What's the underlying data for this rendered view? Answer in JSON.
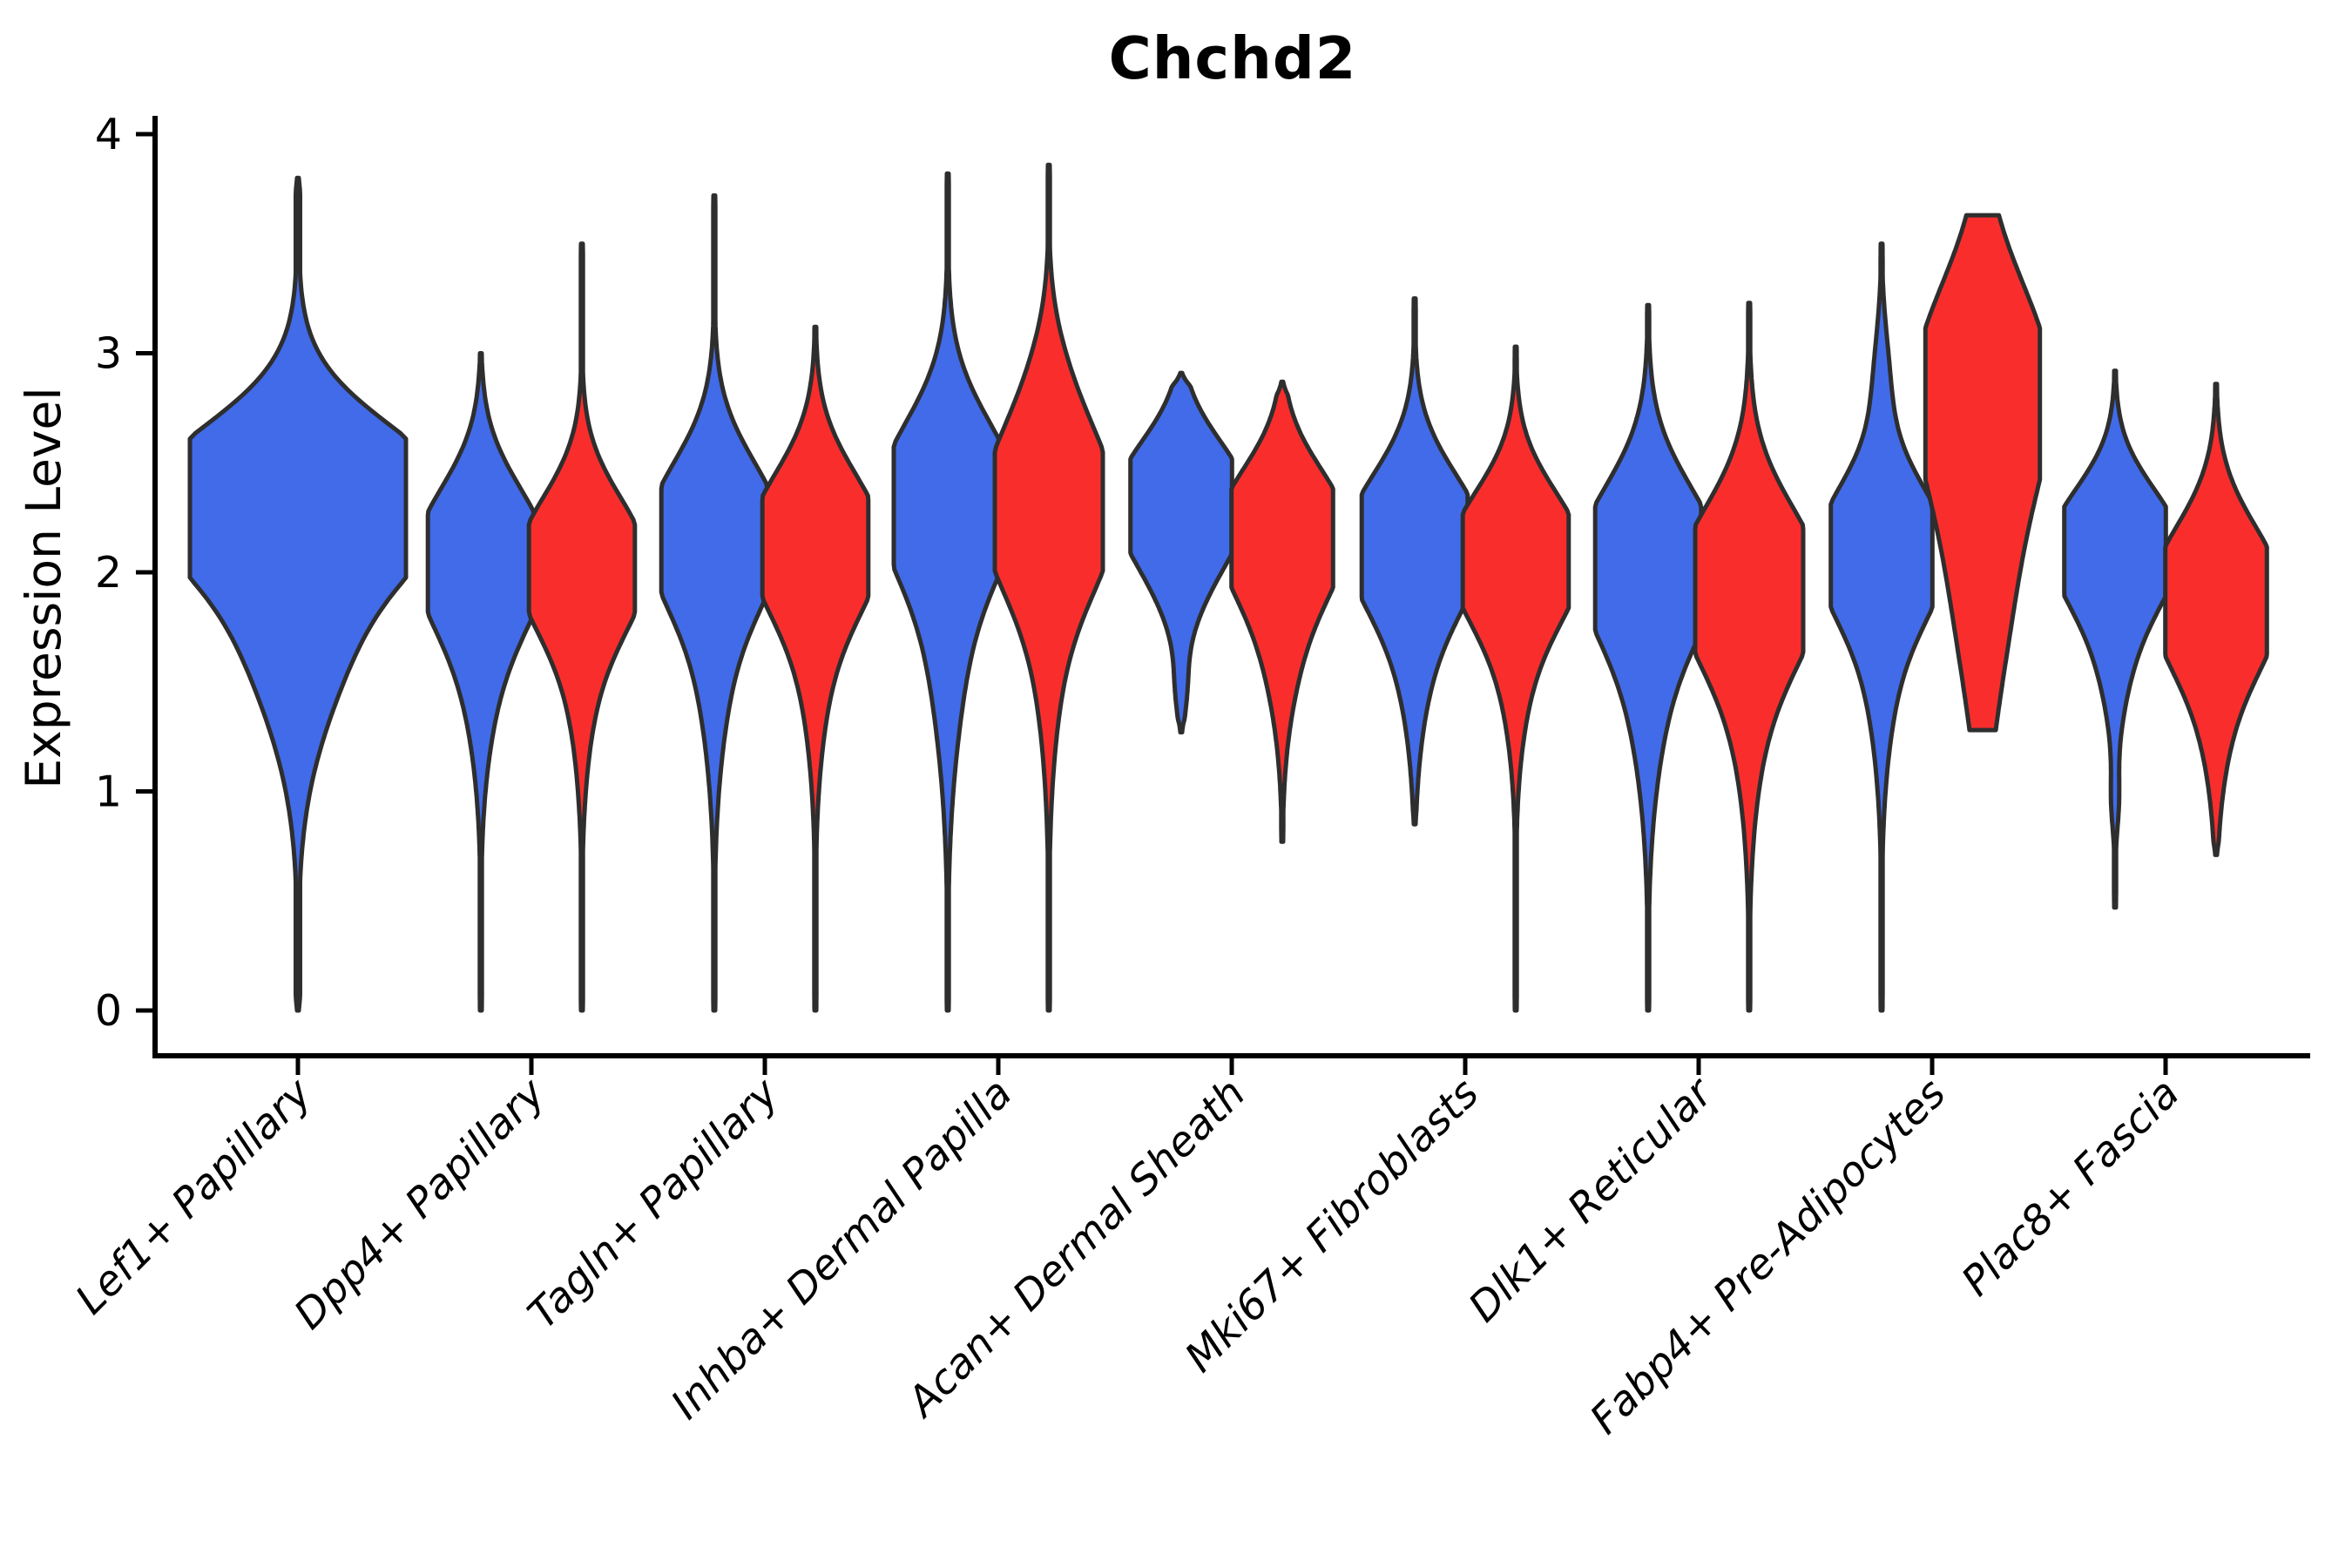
{
  "title": "Chchd2",
  "y_axis": {
    "label": "Expression Level",
    "tick_labels": [
      "0",
      "1",
      "2",
      "3",
      "4"
    ],
    "tick_values": [
      0,
      1,
      2,
      3,
      4
    ],
    "range": [
      0,
      4.1
    ]
  },
  "categories": [
    "Lef1+ Papillary",
    "Dpp4+ Papillary",
    "Tagln+ Papillary",
    "Inhba+ Dermal Papilla",
    "Acan+ Dermal Sheath",
    "Mki67+ Fibroblasts",
    "Dlk1+ Reticular",
    "Fabp4+ Pre-Adipocytes",
    "Plac8+ Fascia"
  ],
  "colors": {
    "blue_fill": "#416BE8",
    "red_fill": "#FA2D2D",
    "outline": "#2E2E2E",
    "axis": "#000000"
  },
  "chart_data": {
    "type": "violin",
    "title": "Chchd2",
    "xlabel": "",
    "ylabel": "Expression Level",
    "ylim": [
      0,
      4.1
    ],
    "grid": false,
    "legend": "none",
    "groups": [
      {
        "name": "group-blue",
        "color": "#416BE8"
      },
      {
        "name": "group-red",
        "color": "#FA2D2D"
      }
    ],
    "violins": [
      {
        "category": 0,
        "group": "single",
        "color": "blue",
        "min": 0.0,
        "max": 3.8,
        "peak": 2.3,
        "width_rel": 1.0,
        "blunt": [
          false,
          false
        ],
        "components": [
          [
            2.38,
            0.3,
            1.0
          ],
          [
            1.95,
            0.52,
            0.6
          ]
        ]
      },
      {
        "category": 1,
        "group": "blue",
        "color": "blue",
        "min": 0.0,
        "max": 3.0,
        "peak": 2.08,
        "width_rel": 0.49,
        "blunt": [
          false,
          false
        ],
        "components": [
          [
            2.1,
            0.3,
            1.0
          ],
          [
            1.72,
            0.42,
            0.38
          ]
        ]
      },
      {
        "category": 1,
        "group": "red",
        "color": "red",
        "min": 0.0,
        "max": 3.5,
        "peak": 2.05,
        "width_rel": 0.49,
        "blunt": [
          false,
          false
        ],
        "components": [
          [
            2.06,
            0.29,
            1.0
          ],
          [
            1.72,
            0.42,
            0.32
          ]
        ]
      },
      {
        "category": 2,
        "group": "blue",
        "color": "blue",
        "min": 0.0,
        "max": 3.72,
        "peak": 2.18,
        "width_rel": 0.49,
        "blunt": [
          false,
          false
        ],
        "components": [
          [
            2.2,
            0.31,
            1.0
          ],
          [
            1.82,
            0.48,
            0.38
          ]
        ]
      },
      {
        "category": 2,
        "group": "red",
        "color": "red",
        "min": 0.0,
        "max": 3.12,
        "peak": 2.15,
        "width_rel": 0.49,
        "blunt": [
          false,
          false
        ],
        "components": [
          [
            2.16,
            0.3,
            1.0
          ],
          [
            1.82,
            0.45,
            0.35
          ]
        ]
      },
      {
        "category": 3,
        "group": "blue",
        "color": "blue",
        "min": 0.0,
        "max": 3.82,
        "peak": 2.33,
        "width_rel": 0.5,
        "blunt": [
          false,
          false
        ],
        "components": [
          [
            2.36,
            0.33,
            1.0
          ],
          [
            1.92,
            0.55,
            0.42
          ]
        ]
      },
      {
        "category": 3,
        "group": "red",
        "color": "red",
        "min": 0.0,
        "max": 3.86,
        "peak": 2.3,
        "width_rel": 0.5,
        "blunt": [
          false,
          false
        ],
        "components": [
          [
            2.3,
            0.34,
            1.0
          ],
          [
            2.85,
            0.28,
            0.2
          ],
          [
            1.9,
            0.5,
            0.32
          ]
        ]
      },
      {
        "category": 4,
        "group": "blue",
        "color": "blue",
        "min": 1.27,
        "max": 2.91,
        "peak": 2.36,
        "width_rel": 0.47,
        "blunt": [
          false,
          false
        ],
        "components": [
          [
            2.38,
            0.25,
            1.0
          ],
          [
            2.08,
            0.28,
            0.5
          ],
          [
            1.45,
            0.13,
            0.08
          ]
        ]
      },
      {
        "category": 4,
        "group": "red",
        "color": "red",
        "min": 0.77,
        "max": 2.87,
        "peak": 2.2,
        "width_rel": 0.47,
        "blunt": [
          false,
          false
        ],
        "components": [
          [
            2.22,
            0.27,
            1.0
          ],
          [
            1.85,
            0.38,
            0.45
          ]
        ]
      },
      {
        "category": 5,
        "group": "blue",
        "color": "blue",
        "min": 0.85,
        "max": 3.25,
        "peak": 2.16,
        "width_rel": 0.49,
        "blunt": [
          false,
          false
        ],
        "components": [
          [
            2.17,
            0.29,
            1.0
          ],
          [
            1.85,
            0.42,
            0.4
          ]
        ]
      },
      {
        "category": 5,
        "group": "red",
        "color": "red",
        "min": 0.0,
        "max": 3.03,
        "peak": 2.1,
        "width_rel": 0.49,
        "blunt": [
          false,
          false
        ],
        "components": [
          [
            2.1,
            0.28,
            1.0
          ],
          [
            1.78,
            0.4,
            0.36
          ]
        ]
      },
      {
        "category": 6,
        "group": "blue",
        "color": "blue",
        "min": 0.0,
        "max": 3.22,
        "peak": 2.06,
        "width_rel": 0.49,
        "blunt": [
          false,
          false
        ],
        "components": [
          [
            2.08,
            0.32,
            1.0
          ],
          [
            1.72,
            0.5,
            0.45
          ]
        ]
      },
      {
        "category": 6,
        "group": "red",
        "color": "red",
        "min": 0.0,
        "max": 3.23,
        "peak": 1.97,
        "width_rel": 0.5,
        "blunt": [
          false,
          false
        ],
        "components": [
          [
            1.97,
            0.33,
            1.0
          ],
          [
            1.68,
            0.5,
            0.42
          ]
        ]
      },
      {
        "category": 7,
        "group": "blue",
        "color": "blue",
        "min": 0.0,
        "max": 3.5,
        "peak": 2.1,
        "width_rel": 0.47,
        "blunt": [
          false,
          false
        ],
        "components": [
          [
            2.12,
            0.29,
            1.0
          ],
          [
            1.8,
            0.45,
            0.38
          ],
          [
            2.88,
            0.24,
            0.13
          ]
        ]
      },
      {
        "category": 7,
        "group": "red",
        "color": "red",
        "min": 1.28,
        "max": 3.63,
        "peak": 2.85,
        "width_rel": 0.53,
        "blunt": [
          true,
          true
        ],
        "components": [
          [
            2.9,
            0.45,
            1.0
          ],
          [
            2.05,
            0.6,
            0.52
          ]
        ]
      },
      {
        "category": 8,
        "group": "blue",
        "color": "blue",
        "min": 0.47,
        "max": 2.92,
        "peak": 2.13,
        "width_rel": 0.47,
        "blunt": [
          false,
          false
        ],
        "components": [
          [
            2.15,
            0.25,
            1.0
          ],
          [
            1.82,
            0.35,
            0.42
          ],
          [
            0.95,
            0.13,
            0.06
          ]
        ]
      },
      {
        "category": 8,
        "group": "red",
        "color": "red",
        "min": 0.71,
        "max": 2.86,
        "peak": 1.9,
        "width_rel": 0.47,
        "blunt": [
          false,
          false
        ],
        "components": [
          [
            1.92,
            0.3,
            1.0
          ],
          [
            1.62,
            0.42,
            0.4
          ]
        ]
      }
    ]
  }
}
